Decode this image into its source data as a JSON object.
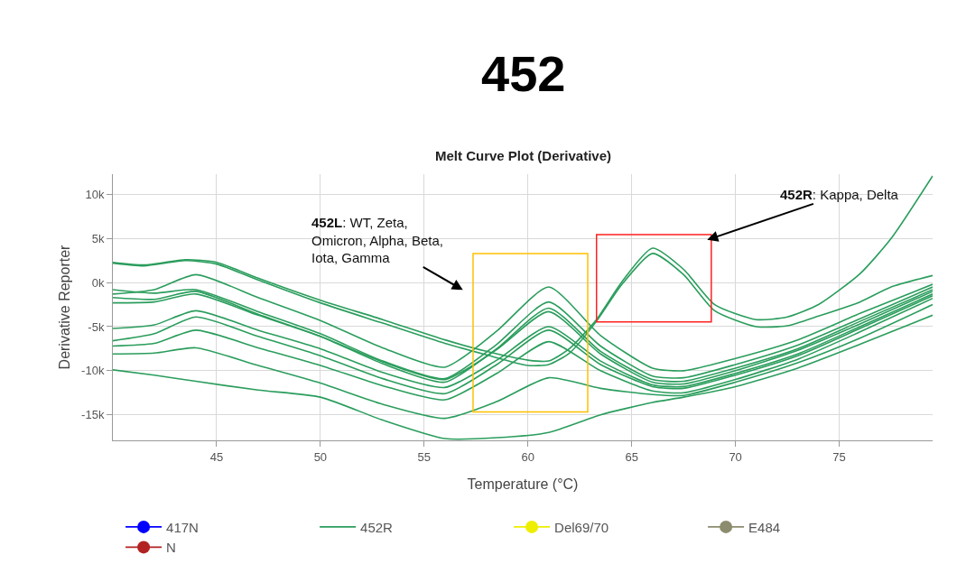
{
  "chart_data": {
    "type": "line",
    "title": "452",
    "subtitle": "Melt Curve Plot (Derivative)",
    "xlabel": "Temperature (°C)",
    "ylabel": "Derivative Reporter",
    "xlim": [
      40,
      79.5
    ],
    "xticks": [
      45,
      50,
      55,
      60,
      65,
      70,
      75
    ],
    "ylim": [
      -17900,
      12300
    ],
    "yticks": [
      {
        "value": -15000,
        "label": "-15k"
      },
      {
        "value": -10000,
        "label": "-10k"
      },
      {
        "value": -5000,
        "label": "-5k"
      },
      {
        "value": 0,
        "label": "0k"
      },
      {
        "value": 5000,
        "label": "5k"
      },
      {
        "value": 10000,
        "label": "10k"
      }
    ],
    "grid": true,
    "legend": "bottom",
    "marker": "none",
    "line_style": "solid",
    "x": [
      40,
      42,
      44,
      47,
      50,
      53,
      56,
      58.5,
      61,
      63.5,
      66,
      67.5,
      70,
      73,
      76,
      79.5
    ],
    "series": [
      {
        "name": "417N",
        "color": "#0000ff",
        "marker": "circle",
        "values": [
          null,
          null,
          null,
          null,
          null,
          null,
          null,
          null,
          null,
          null,
          null,
          null,
          null,
          null,
          null,
          null
        ]
      },
      {
        "name": "452R",
        "color": "#2a9d5c",
        "values": [
          -1300,
          -800,
          900,
          -1700,
          -4300,
          -7400,
          -9600,
          -5500,
          -500,
          -6000,
          -9700,
          -10000,
          -8600,
          -6500,
          -3500,
          -200
        ]
      },
      {
        "name": "Del69/70",
        "color": "#eeee00",
        "marker": "circle",
        "values": [
          null,
          null,
          null,
          null,
          null,
          null,
          null,
          null,
          null,
          null,
          null,
          null,
          null,
          null,
          null,
          null
        ]
      },
      {
        "name": "E484",
        "color": "#8c8c6e",
        "marker": "circle",
        "values": [
          null,
          null,
          null,
          null,
          null,
          null,
          null,
          null,
          null,
          null,
          null,
          null,
          null,
          null,
          null,
          null
        ]
      },
      {
        "name": "N",
        "color": "#b22222",
        "marker": "circle",
        "values": [
          null,
          null,
          null,
          null,
          null,
          null,
          null,
          null,
          null,
          null,
          null,
          null,
          null,
          null,
          null,
          null
        ]
      },
      {
        "color": "#2a9d5c",
        "values": [
          -800,
          -1200,
          -800,
          -3300,
          -5800,
          -8900,
          -10900,
          -7000,
          -2200,
          -7200,
          -10600,
          -10800,
          -9300,
          -7100,
          -4100,
          -500
        ]
      },
      {
        "color": "#2a9d5c",
        "values": [
          -1700,
          -1900,
          -1000,
          -3600,
          -6100,
          -9200,
          -11300,
          -7500,
          -2900,
          -7800,
          -11000,
          -11200,
          -9700,
          -7500,
          -4400,
          -800
        ]
      },
      {
        "color": "#2a9d5c",
        "values": [
          -2300,
          -2200,
          -1300,
          -3700,
          -6100,
          -9000,
          -11000,
          -7600,
          -3300,
          -8100,
          -11300,
          -11500,
          -10000,
          -7700,
          -4700,
          -1000
        ]
      },
      {
        "color": "#2a9d5c",
        "values": [
          -5200,
          -4800,
          -3200,
          -5400,
          -7500,
          -10200,
          -11900,
          -8800,
          -5000,
          -8900,
          -11600,
          -11800,
          -10300,
          -8100,
          -5000,
          -1300
        ]
      },
      {
        "color": "#2a9d5c",
        "values": [
          -6600,
          -5800,
          -3900,
          -6100,
          -8300,
          -10900,
          -12600,
          -9300,
          -5400,
          -9300,
          -11800,
          -12000,
          -10500,
          -8300,
          -5200,
          -1500
        ]
      },
      {
        "color": "#2a9d5c",
        "values": [
          -7200,
          -6900,
          -5400,
          -7400,
          -9400,
          -11700,
          -13300,
          -10300,
          -6700,
          -10000,
          -12300,
          -12500,
          -11000,
          -8700,
          -5600,
          -1800
        ]
      },
      {
        "color": "#2a9d5c",
        "values": [
          -8100,
          -8000,
          -7400,
          -9400,
          -11400,
          -13800,
          -15400,
          -13500,
          -10800,
          -12000,
          -12700,
          -12800,
          -11300,
          -9100,
          -6300,
          -2500
        ]
      },
      {
        "color": "#2a9d5c",
        "values": [
          -9900,
          -10500,
          -11200,
          -12200,
          -13000,
          -15600,
          -17700,
          -17600,
          -17000,
          -15000,
          -13600,
          -13000,
          -11800,
          -9700,
          -7000,
          -3700
        ]
      },
      {
        "color": "#2a9d5c",
        "x": [
          40,
          41.5,
          43.5,
          45,
          47,
          50,
          53,
          56,
          58,
          60,
          61,
          62,
          63.3,
          64.5,
          66,
          67.5,
          69,
          71,
          72.5,
          74,
          76,
          77.5,
          79.5
        ],
        "values": [
          2300,
          2000,
          2600,
          2300,
          500,
          -2000,
          -4200,
          -6500,
          -7800,
          -8800,
          -8900,
          -7500,
          -4200,
          0,
          3900,
          1500,
          -2500,
          -4200,
          -3900,
          -2500,
          1000,
          5000,
          12100
        ]
      },
      {
        "color": "#2a9d5c",
        "x": [
          40,
          41.5,
          43.5,
          45,
          47,
          50,
          53,
          56,
          58,
          60,
          61,
          62,
          63.3,
          64.5,
          66,
          67.5,
          69,
          71,
          72.5,
          74,
          76,
          77.5,
          79.5
        ],
        "values": [
          2200,
          1900,
          2500,
          2100,
          300,
          -2300,
          -4600,
          -6900,
          -8200,
          -9400,
          -9300,
          -8000,
          -4400,
          -300,
          3300,
          900,
          -3200,
          -5000,
          -4900,
          -3800,
          -2200,
          -500,
          800
        ]
      }
    ],
    "annotations": [
      "452L: WT, Zeta,\nOmicron, Alpha, Beta,\nIota, Gamma",
      "452R: Kappa, Delta"
    ]
  }
}
